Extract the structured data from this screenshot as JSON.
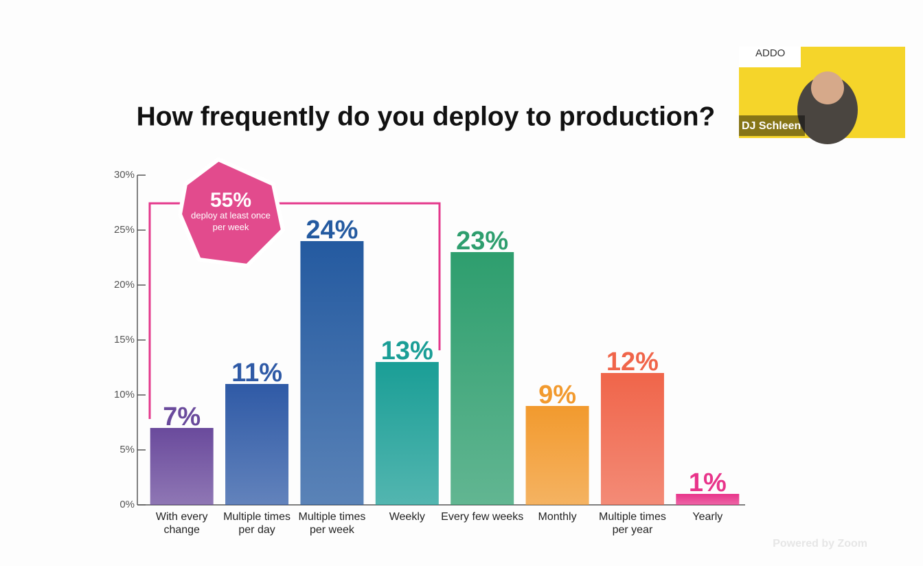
{
  "chart_data": {
    "type": "bar",
    "title": "How frequently do you deploy to production?",
    "categories": [
      "With every change",
      "Multiple times per day",
      "Multiple times per week",
      "Weekly",
      "Every few weeks",
      "Monthly",
      "Multiple times per year",
      "Yearly"
    ],
    "values": [
      7,
      11,
      24,
      13,
      23,
      9,
      12,
      1
    ],
    "value_labels": [
      "7%",
      "11%",
      "24%",
      "13%",
      "23%",
      "9%",
      "12%",
      "1%"
    ],
    "colors": [
      "#6a4a9c",
      "#2f5aa6",
      "#245aa0",
      "#1a9e96",
      "#2e9e6e",
      "#f29a2e",
      "#f0654a",
      "#e8348a"
    ],
    "ylim": [
      0,
      30
    ],
    "yticks": [
      {
        "value": 0,
        "label": "0%"
      },
      {
        "value": 5,
        "label": "5%"
      },
      {
        "value": 10,
        "label": "10%"
      },
      {
        "value": 15,
        "label": "15%"
      },
      {
        "value": 20,
        "label": "20%"
      },
      {
        "value": 25,
        "label": "25%"
      },
      {
        "value": 30,
        "label": "30%"
      }
    ],
    "annotation": {
      "headline": "55%",
      "text": "deploy at least once per week"
    }
  },
  "overlay": {
    "logo": "ADDO",
    "participant": "DJ Schleen",
    "watermark": "Powered by Zoom"
  }
}
